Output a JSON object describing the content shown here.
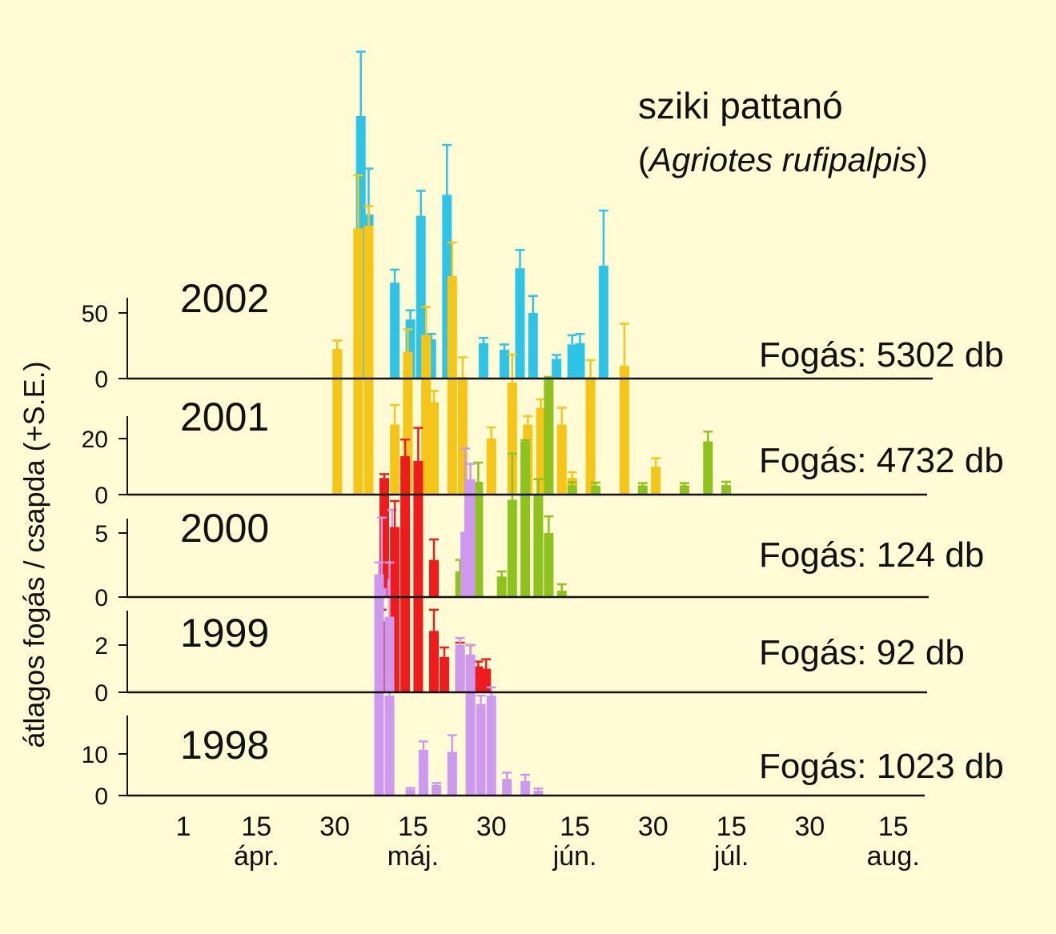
{
  "chart_data": {
    "type": "bar",
    "title": "sziki pattanó",
    "subtitle": {
      "pre": "(",
      "italic": "Agriotes rufipalpis",
      "post": ")"
    },
    "ylabel": "átlagos fogás / csapda (+S.E.)",
    "x_ticks": [
      {
        "day": 0,
        "label": "1",
        "month": ""
      },
      {
        "day": 14,
        "label": "15",
        "month": "ápr."
      },
      {
        "day": 29,
        "label": "30",
        "month": ""
      },
      {
        "day": 44,
        "label": "15",
        "month": "máj."
      },
      {
        "day": 59,
        "label": "30",
        "month": ""
      },
      {
        "day": 75,
        "label": "15",
        "month": "jún."
      },
      {
        "day": 90,
        "label": "30",
        "month": ""
      },
      {
        "day": 105,
        "label": "15",
        "month": "júl."
      },
      {
        "day": 120,
        "label": "30",
        "month": ""
      },
      {
        "day": 136,
        "label": "15",
        "month": "aug."
      }
    ],
    "panels": [
      {
        "year": "2002",
        "catch": "Fogás: 5302 db",
        "y_ticks": [
          {
            "v": 0,
            "label": "0"
          },
          {
            "v": 50,
            "label": "50"
          }
        ],
        "series": [
          {
            "color": "#2ec4e8",
            "points": [
              {
                "day": 34,
                "value": 200,
                "err": 49
              },
              {
                "day": 35.5,
                "value": 125,
                "err": 35
              },
              {
                "day": 40.5,
                "value": 73,
                "err": 10
              },
              {
                "day": 43.5,
                "value": 45,
                "err": 7
              },
              {
                "day": 45.5,
                "value": 124,
                "err": 19
              },
              {
                "day": 47.5,
                "value": 30,
                "err": 4
              },
              {
                "day": 50.5,
                "value": 140,
                "err": 38
              },
              {
                "day": 57.5,
                "value": 27,
                "err": 4
              },
              {
                "day": 61.5,
                "value": 22,
                "err": 4
              },
              {
                "day": 64.5,
                "value": 84,
                "err": 14
              },
              {
                "day": 67,
                "value": 50,
                "err": 13
              },
              {
                "day": 71.5,
                "value": 15,
                "err": 3
              },
              {
                "day": 74.5,
                "value": 26,
                "err": 7
              },
              {
                "day": 76,
                "value": 27,
                "err": 7
              },
              {
                "day": 80.5,
                "value": 86,
                "err": 42
              }
            ]
          }
        ]
      },
      {
        "year": "2001",
        "catch": "Fogás: 4732 db",
        "y_ticks": [
          {
            "v": 0,
            "label": "0"
          },
          {
            "v": 20,
            "label": "20"
          }
        ],
        "series": [
          {
            "color": "#f5c518",
            "points": [
              {
                "day": 29.5,
                "value": 52,
                "err": 3
              },
              {
                "day": 33.5,
                "value": 95,
                "err": 19
              },
              {
                "day": 35.5,
                "value": 96,
                "err": 7
              },
              {
                "day": 40.5,
                "value": 25,
                "err": 7
              },
              {
                "day": 43,
                "value": 51,
                "err": 8
              },
              {
                "day": 46.5,
                "value": 57,
                "err": 10
              },
              {
                "day": 48,
                "value": 33,
                "err": 4
              },
              {
                "day": 51.5,
                "value": 78,
                "err": 12
              },
              {
                "day": 53.5,
                "value": 42,
                "err": 7
              },
              {
                "day": 59,
                "value": 20,
                "err": 4
              },
              {
                "day": 63,
                "value": 40,
                "err": 10
              },
              {
                "day": 66,
                "value": 25,
                "err": 3
              },
              {
                "day": 68.5,
                "value": 31,
                "err": 3
              },
              {
                "day": 70,
                "value": 3.3,
                "err": 0.8
              },
              {
                "day": 72.5,
                "value": 25,
                "err": 6
              },
              {
                "day": 74.5,
                "value": 6,
                "err": 2
              },
              {
                "day": 78,
                "value": 42,
                "err": 6
              },
              {
                "day": 84.5,
                "value": 46,
                "err": 15
              },
              {
                "day": 90.5,
                "value": 10,
                "err": 3
              }
            ]
          },
          {
            "color": "#8dc21f",
            "points": [
              {
                "day": 65.5,
                "value": 19,
                "err": 0.5
              },
              {
                "day": 70,
                "value": 41,
                "err": 1
              },
              {
                "day": 74.5,
                "value": 3.3,
                "err": 1.2
              },
              {
                "day": 79,
                "value": 3.2,
                "err": 1.1
              },
              {
                "day": 88,
                "value": 3.3,
                "err": 0.8
              },
              {
                "day": 96,
                "value": 3.3,
                "err": 0.8
              },
              {
                "day": 100.5,
                "value": 19,
                "err": 3.5
              },
              {
                "day": 104,
                "value": 3.4,
                "err": 1.2
              }
            ]
          }
        ]
      },
      {
        "year": "2000",
        "catch": "Fogás: 124 db",
        "y_ticks": [
          {
            "v": 0,
            "label": "0"
          },
          {
            "v": 5,
            "label": "5"
          }
        ],
        "series": [
          {
            "color": "#8dc21f",
            "points": [
              {
                "day": 53,
                "value": 2,
                "err": 0.9
              },
              {
                "day": 56.5,
                "value": 9,
                "err": 1.5
              },
              {
                "day": 61,
                "value": 1.6,
                "err": 0.4
              },
              {
                "day": 63,
                "value": 7.6,
                "err": 3.6
              },
              {
                "day": 65.5,
                "value": 9.3,
                "err": 0.3
              },
              {
                "day": 68,
                "value": 8,
                "err": 1.2
              },
              {
                "day": 70,
                "value": 5,
                "err": 1.3
              },
              {
                "day": 72.5,
                "value": 0.5,
                "err": 0.5
              }
            ]
          },
          {
            "color": "#ee1c1c",
            "points": [
              {
                "day": 38.5,
                "value": 9.3,
                "err": 0.3
              },
              {
                "day": 42.5,
                "value": 11,
                "err": 1.3
              },
              {
                "day": 48,
                "value": 2.9,
                "err": 1.6
              }
            ]
          },
          {
            "color": "#cc99ee",
            "points": [
              {
                "day": 38,
                "value": 0.7,
                "err": 5.5
              },
              {
                "day": 40,
                "value": 1.4,
                "err": 5.4
              },
              {
                "day": 54,
                "value": 5.1,
                "err": 6.5
              },
              {
                "day": 55,
                "value": 9.2,
                "err": 1.2
              }
            ]
          }
        ]
      },
      {
        "year": "1999",
        "catch": "Fogás: 92 db",
        "y_ticks": [
          {
            "v": 0,
            "label": "0"
          },
          {
            "v": 2,
            "label": "2"
          }
        ],
        "series": [
          {
            "color": "#ee1c1c",
            "points": [
              {
                "day": 38,
                "value": 3,
                "err": 0.5
              },
              {
                "day": 40.5,
                "value": 7,
                "err": 1.1
              },
              {
                "day": 42.5,
                "value": 7.8,
                "err": 1.3
              },
              {
                "day": 45,
                "value": 9.8,
                "err": 1.4
              },
              {
                "day": 48,
                "value": 2.6,
                "err": 0.9
              },
              {
                "day": 50,
                "value": 1.5,
                "err": 0.4
              },
              {
                "day": 53,
                "value": 1.8,
                "err": 0.3
              },
              {
                "day": 55,
                "value": 1.5,
                "err": 0.5
              },
              {
                "day": 56.5,
                "value": 1.1,
                "err": 0.2
              },
              {
                "day": 58,
                "value": 1.0,
                "err": 0.4
              }
            ]
          },
          {
            "color": "#cc99ee",
            "points": [
              {
                "day": 37.5,
                "value": 5,
                "err": 0.5
              },
              {
                "day": 39.5,
                "value": 3.2,
                "err": 2.3
              },
              {
                "day": 53,
                "value": 2.0,
                "err": 0.3
              },
              {
                "day": 55,
                "value": 1.6,
                "err": 0.4
              }
            ]
          }
        ]
      },
      {
        "year": "1998",
        "catch": "Fogás: 1023 db",
        "y_ticks": [
          {
            "v": 0,
            "label": "0"
          },
          {
            "v": 10,
            "label": "10"
          }
        ],
        "series": [
          {
            "color": "#cc99ee",
            "points": [
              {
                "day": 37.5,
                "value": 28,
                "err": 3
              },
              {
                "day": 39.5,
                "value": 24,
                "err": 4
              },
              {
                "day": 43.5,
                "value": 1.5,
                "err": 0.3
              },
              {
                "day": 46,
                "value": 11,
                "err": 2
              },
              {
                "day": 48.5,
                "value": 2.5,
                "err": 0.5
              },
              {
                "day": 51.5,
                "value": 10.5,
                "err": 4
              },
              {
                "day": 55,
                "value": 29,
                "err": 3
              },
              {
                "day": 57,
                "value": 22,
                "err": 2
              },
              {
                "day": 59,
                "value": 24,
                "err": 2
              },
              {
                "day": 62,
                "value": 4,
                "err": 1.5
              },
              {
                "day": 65.5,
                "value": 3.5,
                "err": 1.5
              },
              {
                "day": 68,
                "value": 1.2,
                "err": 0.5
              }
            ]
          }
        ]
      }
    ]
  }
}
